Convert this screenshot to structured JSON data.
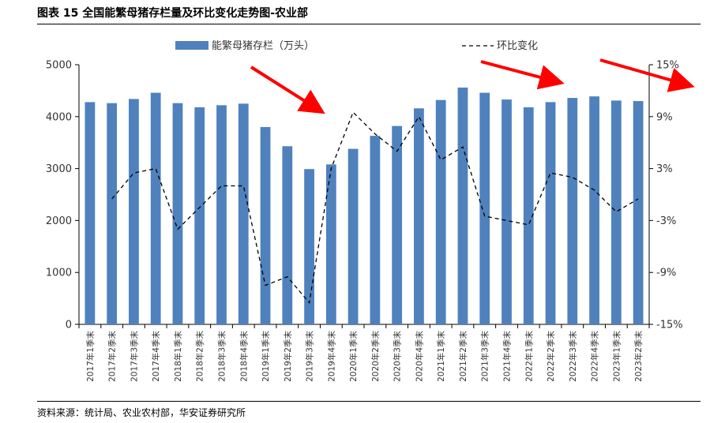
{
  "header": {
    "title": "图表 15  全国能繁母猪存栏量及环比变化走势图-农业部"
  },
  "footer": {
    "source": "资料来源：统计局、农业农村部，华安证券研究所"
  },
  "chart_data": {
    "type": "bar",
    "categories": [
      "2017年1季末",
      "2017年2季末",
      "2017年3季末",
      "2017年4季末",
      "2018年1季末",
      "2018年2季末",
      "2018年3季末",
      "2018年4季末",
      "2019年1季末",
      "2019年2季末",
      "2019年3季末",
      "2019年4季末",
      "2020年1季末",
      "2020年2季末",
      "2020年3季末",
      "2020年4季末",
      "2021年1季末",
      "2021年2季末",
      "2021年3季末",
      "2021年4季末",
      "2022年1季末",
      "2022年2季末",
      "2022年3季末",
      "2022年4季末",
      "2023年1季末",
      "2023年2季末"
    ],
    "series": [
      {
        "name": "能繁母猪存栏（万头）",
        "type": "bar",
        "axis": "left",
        "color": "#4f81bd",
        "values": [
          4280,
          4260,
          4340,
          4460,
          4260,
          4180,
          4220,
          4250,
          3800,
          3430,
          2990,
          3080,
          3380,
          3630,
          3820,
          4160,
          4320,
          4560,
          4460,
          4330,
          4180,
          4280,
          4360,
          4390,
          4310,
          4300
        ]
      },
      {
        "name": "环比变化",
        "type": "line",
        "axis": "right",
        "style": "dashed",
        "color": "#000000",
        "values": [
          null,
          -0.5,
          2.5,
          3.0,
          -4.0,
          -1.5,
          1.0,
          1.0,
          -10.5,
          -9.5,
          -12.5,
          3.0,
          9.5,
          7.0,
          5.0,
          9.0,
          4.0,
          5.5,
          -2.5,
          -3.0,
          -3.5,
          2.5,
          2.0,
          0.5,
          -2.0,
          -0.5
        ]
      }
    ],
    "y_left": {
      "min": 0,
      "max": 5000,
      "ticks": [
        0,
        1000,
        2000,
        3000,
        4000,
        5000
      ]
    },
    "y_right": {
      "min": -15,
      "max": 15,
      "ticks": [
        "-15%",
        "-9%",
        "-3%",
        "3%",
        "9%",
        "15%"
      ]
    },
    "legend": {
      "position": "top",
      "items": [
        "能繁母猪存栏（万头）",
        "环比变化"
      ]
    },
    "annotations": [
      {
        "type": "arrow",
        "color": "#ff0000",
        "description": "red arrow"
      },
      {
        "type": "arrow",
        "color": "#ff0000",
        "description": "red arrow"
      },
      {
        "type": "arrow",
        "color": "#ff0000",
        "description": "red arrow"
      }
    ],
    "grid": false
  }
}
